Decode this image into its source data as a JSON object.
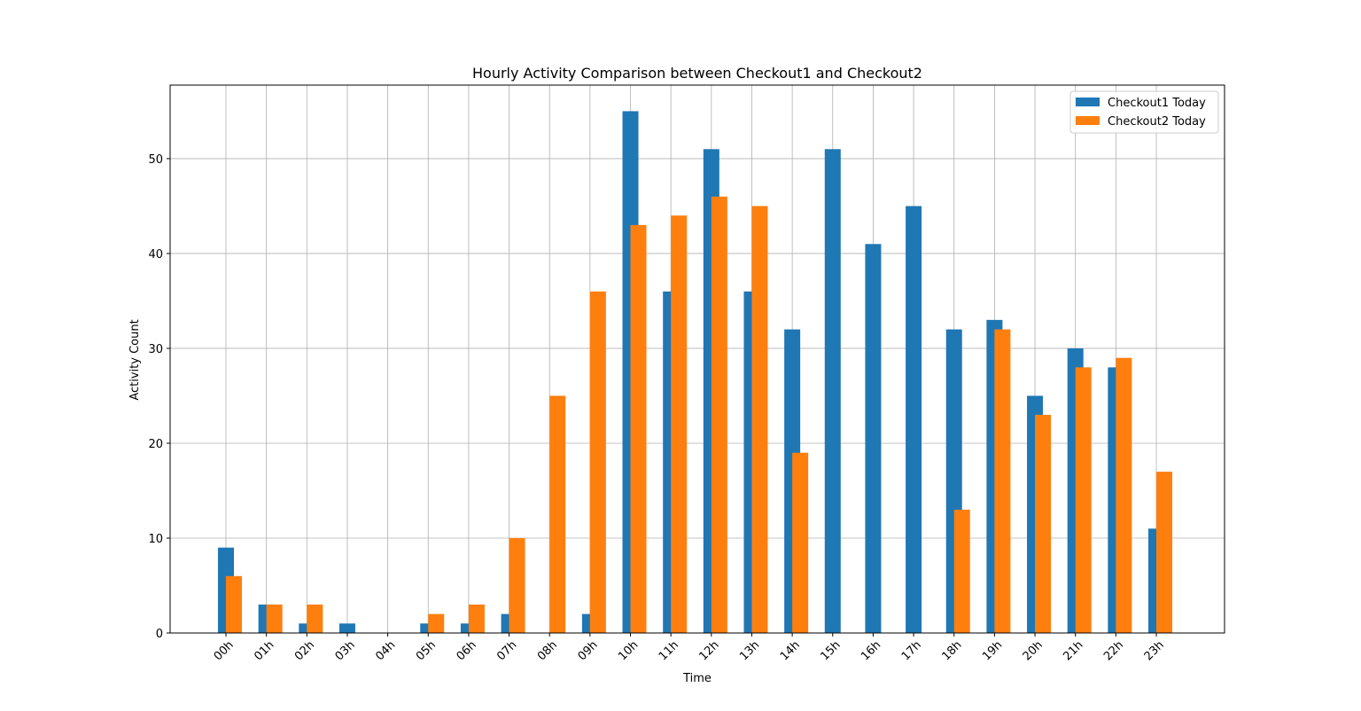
{
  "chart_data": {
    "type": "bar",
    "title": "Hourly Activity Comparison between Checkout1 and Checkout2",
    "xlabel": "Time",
    "ylabel": "Activity Count",
    "categories": [
      "00h",
      "01h",
      "02h",
      "03h",
      "04h",
      "05h",
      "06h",
      "07h",
      "08h",
      "09h",
      "10h",
      "11h",
      "12h",
      "13h",
      "14h",
      "15h",
      "16h",
      "17h",
      "18h",
      "19h",
      "20h",
      "21h",
      "22h",
      "23h"
    ],
    "series": [
      {
        "name": "Checkout1 Today",
        "color": "#1f77b4",
        "values": [
          9,
          3,
          1,
          1,
          0,
          1,
          1,
          2,
          0,
          2,
          55,
          36,
          51,
          36,
          32,
          51,
          41,
          45,
          32,
          33,
          25,
          30,
          28,
          11
        ]
      },
      {
        "name": "Checkout2 Today",
        "color": "#ff7f0e",
        "values": [
          6,
          3,
          3,
          0,
          0,
          2,
          3,
          10,
          25,
          36,
          43,
          44,
          46,
          45,
          19,
          0,
          0,
          0,
          13,
          32,
          23,
          28,
          29,
          17
        ]
      }
    ],
    "ylim": [
      0,
      57.75
    ],
    "yticks": [
      0,
      10,
      20,
      30,
      40,
      50
    ],
    "grid": true,
    "legend_position": "top-right"
  }
}
